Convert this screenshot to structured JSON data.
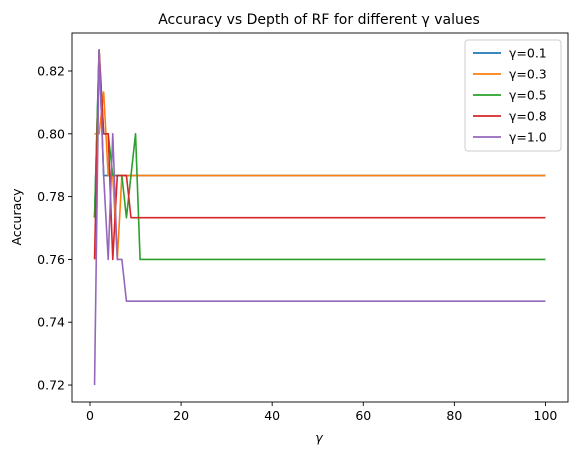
{
  "chart_data": {
    "type": "line",
    "title": "Accuracy vs Depth of RF for different γ values",
    "xlabel": "γ",
    "ylabel": "Accuracy",
    "xlim": [
      -3.95,
      104.95
    ],
    "ylim": [
      0.7146,
      0.8321
    ],
    "xticks": [
      0,
      20,
      40,
      60,
      80,
      100
    ],
    "yticks": [
      0.72,
      0.74,
      0.76,
      0.78,
      0.8,
      0.82
    ],
    "ytick_labels": [
      "0.72",
      "0.74",
      "0.76",
      "0.78",
      "0.80",
      "0.82"
    ],
    "grid": false,
    "legend_position": "top-right",
    "series": [
      {
        "name": "γ=0.1",
        "color": "#1f77b4",
        "points": [
          [
            1,
            0.7733
          ],
          [
            2,
            0.8267
          ],
          [
            3,
            0.7867
          ],
          [
            100,
            0.7867
          ]
        ]
      },
      {
        "name": "γ=0.3",
        "color": "#ff7f0e",
        "points": [
          [
            1,
            0.8
          ],
          [
            2,
            0.8
          ],
          [
            3,
            0.8133
          ],
          [
            4,
            0.7867
          ],
          [
            5,
            0.7867
          ],
          [
            6,
            0.76
          ],
          [
            7,
            0.7867
          ],
          [
            100,
            0.7867
          ]
        ]
      },
      {
        "name": "γ=0.5",
        "color": "#2ca02c",
        "points": [
          [
            1,
            0.7733
          ],
          [
            2,
            0.8267
          ],
          [
            3,
            0.8
          ],
          [
            4,
            0.8
          ],
          [
            5,
            0.7867
          ],
          [
            6,
            0.7867
          ],
          [
            7,
            0.7867
          ],
          [
            8,
            0.7733
          ],
          [
            9,
            0.7867
          ],
          [
            10,
            0.8
          ],
          [
            11,
            0.76
          ],
          [
            100,
            0.76
          ]
        ]
      },
      {
        "name": "γ=0.8",
        "color": "#d62728",
        "points": [
          [
            1,
            0.76
          ],
          [
            2,
            0.8267
          ],
          [
            3,
            0.8
          ],
          [
            4,
            0.8
          ],
          [
            5,
            0.76
          ],
          [
            6,
            0.7867
          ],
          [
            7,
            0.7867
          ],
          [
            8,
            0.7867
          ],
          [
            9,
            0.7733
          ],
          [
            100,
            0.7733
          ]
        ]
      },
      {
        "name": "γ=1.0",
        "color": "#9467bd",
        "points": [
          [
            1,
            0.72
          ],
          [
            2,
            0.8267
          ],
          [
            3,
            0.7867
          ],
          [
            4,
            0.76
          ],
          [
            5,
            0.8
          ],
          [
            6,
            0.76
          ],
          [
            7,
            0.76
          ],
          [
            8,
            0.7467
          ],
          [
            100,
            0.7467
          ]
        ]
      }
    ]
  }
}
